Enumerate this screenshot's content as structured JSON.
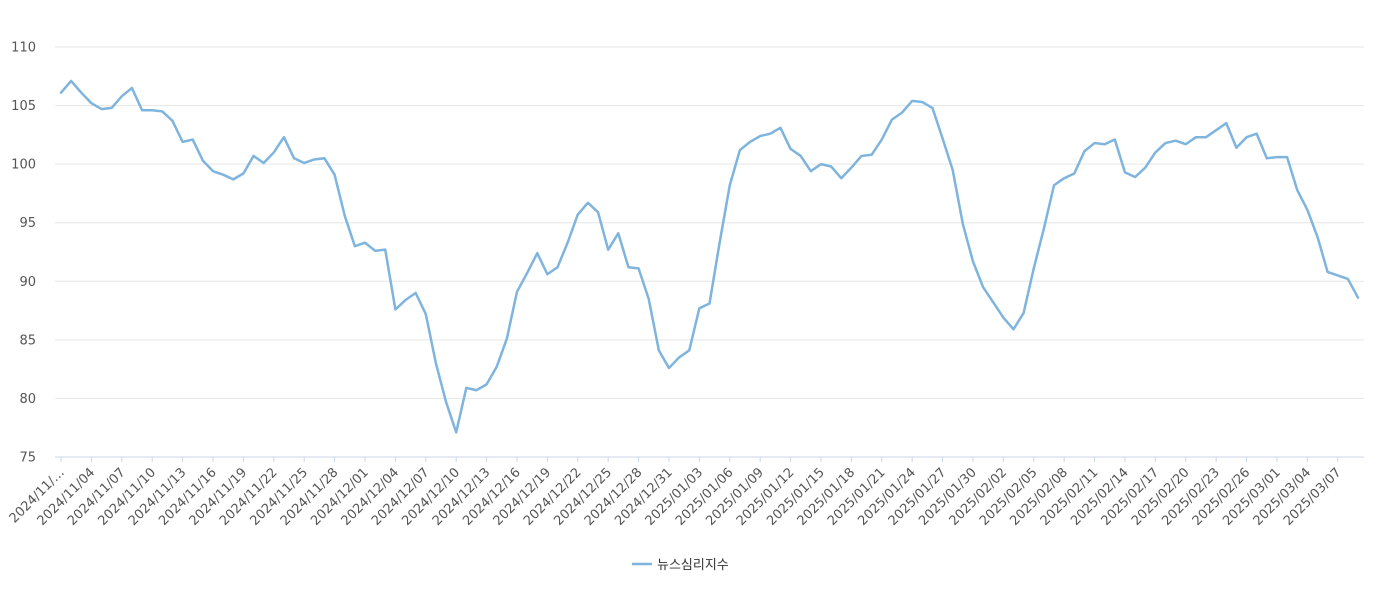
{
  "chart_data": {
    "type": "line",
    "colors": {
      "series": "#7eb4dd",
      "grid": "#e6e6e6",
      "axis": "#ccd6eb"
    },
    "ylim": [
      75,
      110
    ],
    "y_ticks": [
      75,
      80,
      85,
      90,
      95,
      100,
      105,
      110
    ],
    "x_tick_labels": [
      "2024/11/…",
      "2024/11/04",
      "2024/11/07",
      "2024/11/10",
      "2024/11/13",
      "2024/11/16",
      "2024/11/19",
      "2024/11/22",
      "2024/11/25",
      "2024/11/28",
      "2024/12/01",
      "2024/12/04",
      "2024/12/07",
      "2024/12/10",
      "2024/12/13",
      "2024/12/16",
      "2024/12/19",
      "2024/12/22",
      "2024/12/25",
      "2024/12/28",
      "2024/12/31",
      "2025/01/03",
      "2025/01/06",
      "2025/01/09",
      "2025/01/12",
      "2025/01/15",
      "2025/01/18",
      "2025/01/21",
      "2025/01/24",
      "2025/01/27",
      "2025/01/30",
      "2025/02/02",
      "2025/02/05",
      "2025/02/08",
      "2025/02/11",
      "2025/02/14",
      "2025/02/17",
      "2025/02/20",
      "2025/02/23",
      "2025/02/26",
      "2025/03/01",
      "2025/03/04",
      "2025/03/07"
    ],
    "grid": true,
    "legend_position": "bottom-center",
    "series": [
      {
        "name": "뉴스심리지수",
        "values": [
          106.1,
          107.1,
          106.1,
          105.2,
          104.7,
          104.8,
          105.8,
          106.5,
          104.6,
          104.6,
          104.5,
          103.7,
          101.9,
          102.1,
          100.3,
          99.4,
          99.1,
          98.7,
          99.2,
          100.7,
          100.1,
          101.0,
          102.3,
          100.5,
          100.1,
          100.4,
          100.5,
          99.1,
          95.6,
          93.0,
          93.3,
          92.6,
          92.7,
          87.6,
          88.4,
          89.0,
          87.2,
          83.0,
          79.7,
          77.1,
          80.9,
          80.7,
          81.2,
          82.7,
          85.1,
          89.1,
          90.7,
          92.4,
          90.6,
          91.2,
          93.3,
          95.7,
          96.7,
          95.9,
          92.7,
          94.1,
          91.2,
          91.1,
          88.5,
          84.1,
          82.6,
          83.5,
          84.1,
          87.7,
          88.1,
          93.3,
          98.2,
          101.2,
          101.9,
          102.4,
          102.6,
          103.1,
          101.3,
          100.7,
          99.4,
          100.0,
          99.8,
          98.8,
          99.7,
          100.7,
          100.8,
          102.1,
          103.8,
          104.4,
          105.4,
          105.3,
          104.8,
          102.2,
          99.5,
          94.9,
          91.7,
          89.5,
          88.2,
          86.9,
          85.9,
          87.3,
          91.1,
          94.5,
          98.2,
          98.8,
          99.2,
          101.1,
          101.8,
          101.7,
          102.1,
          99.3,
          98.9,
          99.7,
          101.0,
          101.8,
          102.0,
          101.7,
          102.3,
          102.3,
          102.9,
          103.5,
          101.4,
          102.3,
          102.6,
          100.5,
          100.6,
          100.6,
          97.8,
          96.1,
          93.8,
          90.8,
          90.5,
          90.2,
          88.6
        ]
      }
    ]
  }
}
